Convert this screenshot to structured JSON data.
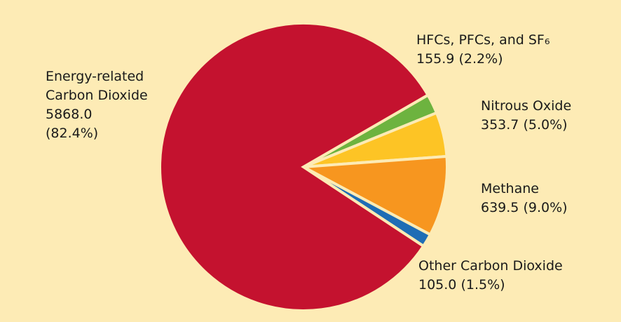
{
  "chart_data": {
    "type": "pie",
    "categories": [
      "HFCs, PFCs, and SF₆",
      "Nitrous Oxide",
      "Methane",
      "Other Carbon Dioxide",
      "Energy-related Carbon Dioxide"
    ],
    "values": [
      155.9,
      353.7,
      639.5,
      105.0,
      5868.0
    ],
    "value_labels": [
      "155.9",
      "353.7",
      "639.5",
      "105.0",
      "5868.0"
    ],
    "percentages": [
      2.2,
      5.0,
      9.0,
      1.5,
      82.4
    ],
    "percentage_labels": [
      "(2.2%)",
      "(5.0%)",
      "(9.0%)",
      "(1.5%)",
      "(82.4%)"
    ],
    "colors": [
      "#6db33f",
      "#fdc425",
      "#f7961f",
      "#1f6db5",
      "#c4122f"
    ]
  }
}
